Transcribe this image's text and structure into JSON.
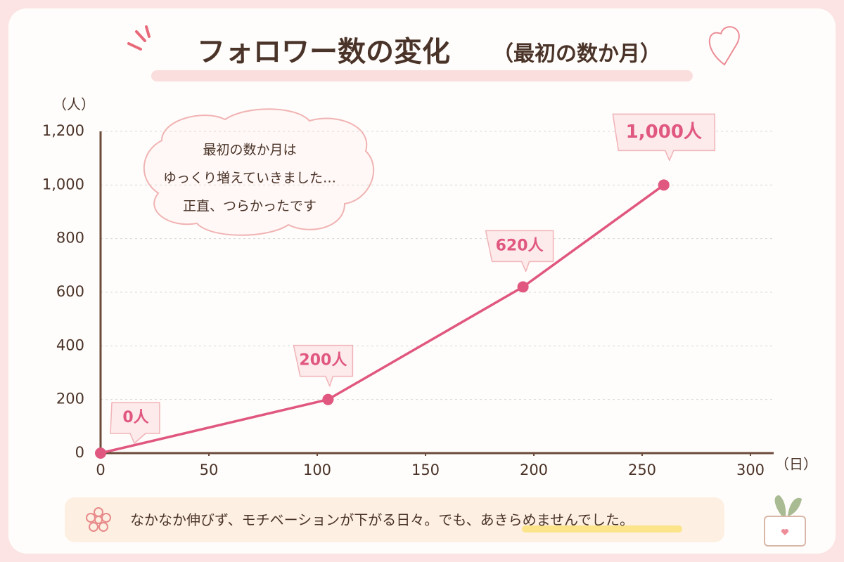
{
  "chart_data": {
    "type": "line",
    "title": "フォロワー数の変化",
    "subtitle": "（最初の数か月）",
    "y_label": "（人）",
    "x_label": "（日）",
    "x": [
      0,
      105,
      195,
      260
    ],
    "series": [
      {
        "name": "フォロワー数",
        "color": "#e0577f",
        "values": [
          0,
          200,
          620,
          1000
        ],
        "value_labels": [
          "0人",
          "200人",
          "620人",
          "1,000人"
        ]
      }
    ],
    "xlim": [
      0,
      300
    ],
    "xticks": [
      0,
      50,
      100,
      150,
      200,
      250,
      300
    ],
    "ylim": [
      0,
      1200
    ],
    "yticks": [
      0,
      200,
      400,
      600,
      800,
      {
        "value": 1000,
        "label": "1,000"
      },
      {
        "value": 1200,
        "label": "1,200"
      }
    ],
    "grid": true,
    "annotation": [
      "最初の数か月は",
      "ゆっくり増えていきました…",
      "正直、つらかったです"
    ],
    "footer": [
      "なかなか伸びず、モチベーションが下がる日々。でも、",
      "あきらめませんでした",
      "。"
    ]
  }
}
